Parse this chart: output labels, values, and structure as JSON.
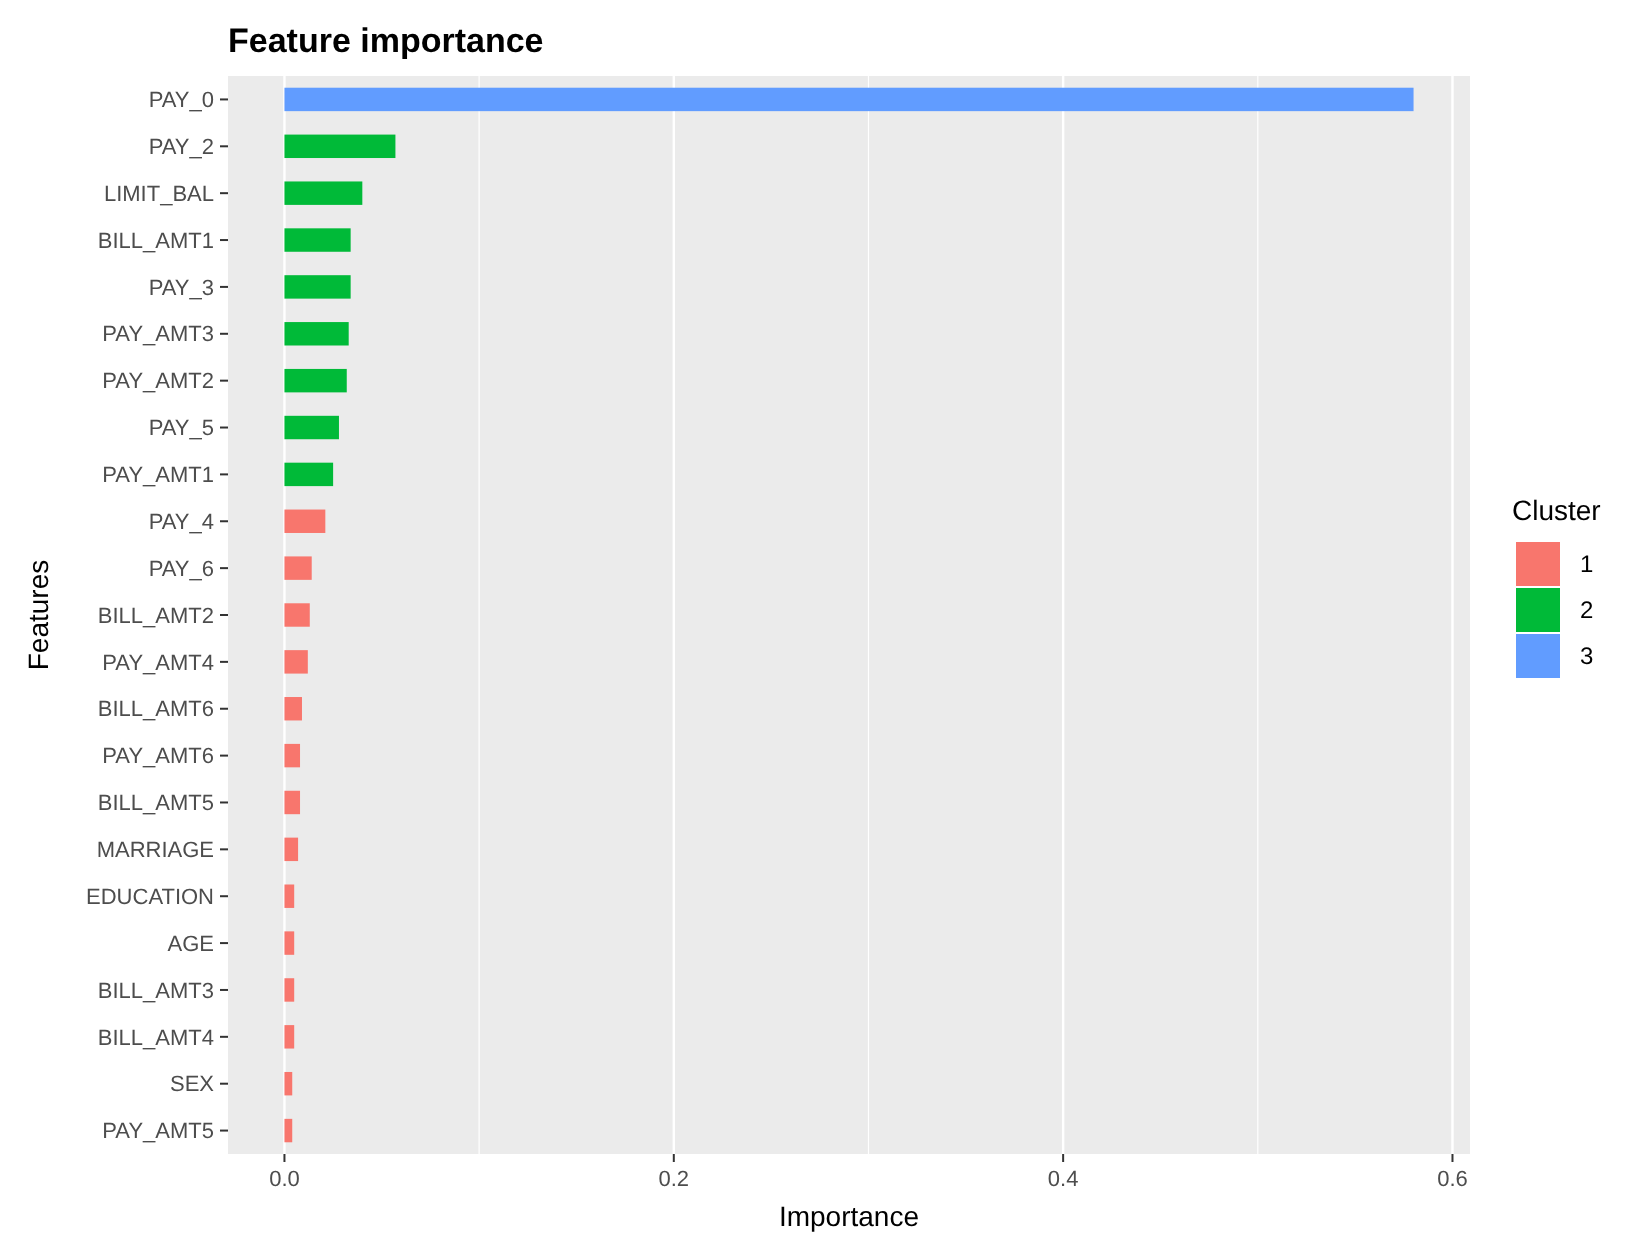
{
  "chart_data": {
    "type": "bar",
    "orientation": "horizontal",
    "title": "Feature importance",
    "xlabel": "Importance",
    "ylabel": "Features",
    "legend_title": "Cluster",
    "legend": "right",
    "grid": "x",
    "categories": [
      "PAY_0",
      "PAY_2",
      "LIMIT_BAL",
      "BILL_AMT1",
      "PAY_3",
      "PAY_AMT3",
      "PAY_AMT2",
      "PAY_5",
      "PAY_AMT1",
      "PAY_4",
      "PAY_6",
      "BILL_AMT2",
      "PAY_AMT4",
      "BILL_AMT6",
      "PAY_AMT6",
      "BILL_AMT5",
      "MARRIAGE",
      "EDUCATION",
      "AGE",
      "BILL_AMT3",
      "BILL_AMT4",
      "SEX",
      "PAY_AMT5"
    ],
    "series": [
      {
        "name": "1",
        "color": "#f8766d",
        "values": [
          null,
          null,
          null,
          null,
          null,
          null,
          null,
          null,
          null,
          0.021,
          0.014,
          0.013,
          0.012,
          0.009,
          0.008,
          0.008,
          0.007,
          0.005,
          0.005,
          0.005,
          0.005,
          0.004,
          0.004
        ]
      },
      {
        "name": "2",
        "color": "#00ba38",
        "values": [
          null,
          0.057,
          0.04,
          0.034,
          0.034,
          0.033,
          0.032,
          0.028,
          0.025,
          null,
          null,
          null,
          null,
          null,
          null,
          null,
          null,
          null,
          null,
          null,
          null,
          null,
          null
        ]
      },
      {
        "name": "3",
        "color": "#619cff",
        "values": [
          0.58,
          null,
          null,
          null,
          null,
          null,
          null,
          null,
          null,
          null,
          null,
          null,
          null,
          null,
          null,
          null,
          null,
          null,
          null,
          null,
          null,
          null,
          null
        ]
      }
    ],
    "xlim": [
      -0.029,
      0.609
    ],
    "xticks": [
      {
        "value": 0,
        "label": "0.0"
      },
      {
        "value": 0.2,
        "label": "0.2"
      },
      {
        "value": 0.4,
        "label": "0.4"
      },
      {
        "value": 0.6,
        "label": "0.6"
      }
    ]
  }
}
